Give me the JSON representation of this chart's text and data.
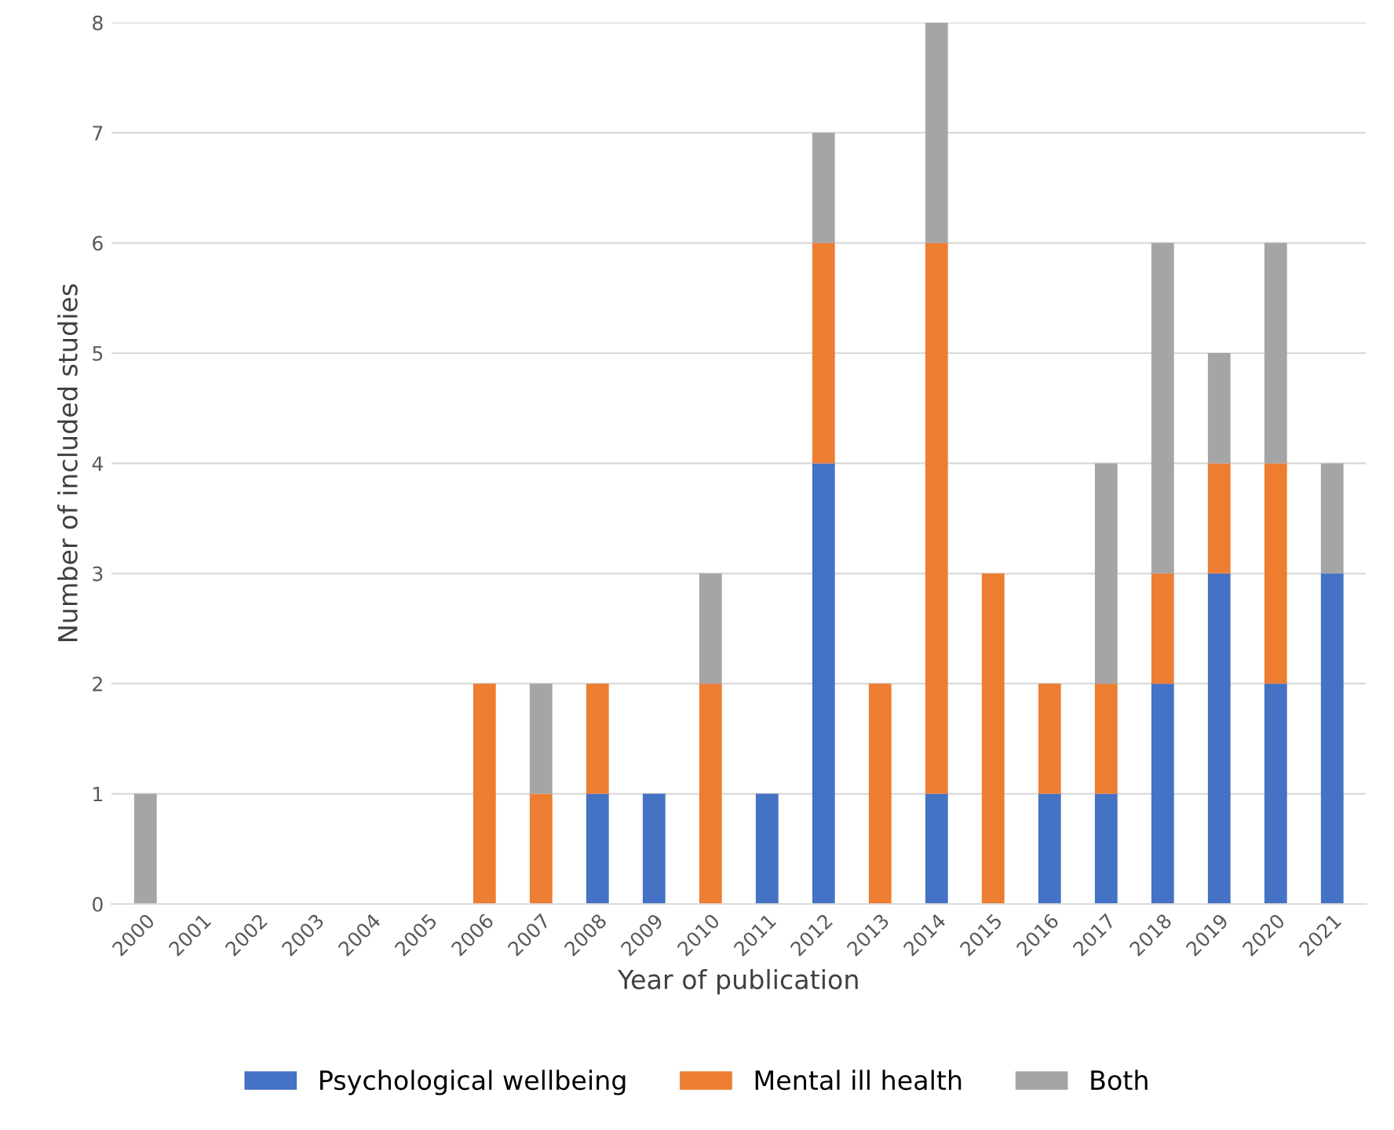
{
  "chart_data": {
    "type": "bar",
    "stacked": true,
    "xlabel": "Year of publication",
    "ylabel": "Number of included studies",
    "categories": [
      "2000",
      "2001",
      "2002",
      "2003",
      "2004",
      "2005",
      "2006",
      "2007",
      "2008",
      "2009",
      "2010",
      "2011",
      "2012",
      "2013",
      "2014",
      "2015",
      "2016",
      "2017",
      "2018",
      "2019",
      "2020",
      "2021"
    ],
    "series": [
      {
        "name": "Psychological wellbeing",
        "color": "#4472c4",
        "values": [
          0,
          0,
          0,
          0,
          0,
          0,
          0,
          0,
          1,
          1,
          0,
          1,
          4,
          0,
          1,
          0,
          1,
          1,
          2,
          3,
          2,
          3
        ]
      },
      {
        "name": "Mental ill health",
        "color": "#ed7d31",
        "values": [
          0,
          0,
          0,
          0,
          0,
          0,
          2,
          1,
          1,
          0,
          2,
          0,
          2,
          2,
          5,
          3,
          1,
          1,
          1,
          1,
          2,
          0
        ]
      },
      {
        "name": "Both",
        "color": "#a5a5a5",
        "values": [
          1,
          0,
          0,
          0,
          0,
          0,
          0,
          1,
          0,
          0,
          1,
          0,
          1,
          0,
          2,
          0,
          0,
          2,
          3,
          1,
          2,
          1
        ]
      }
    ],
    "ylim": [
      0,
      8
    ],
    "yticks": [
      0,
      1,
      2,
      3,
      4,
      5,
      6,
      7,
      8
    ],
    "grid": "y",
    "legend": "bottom"
  }
}
